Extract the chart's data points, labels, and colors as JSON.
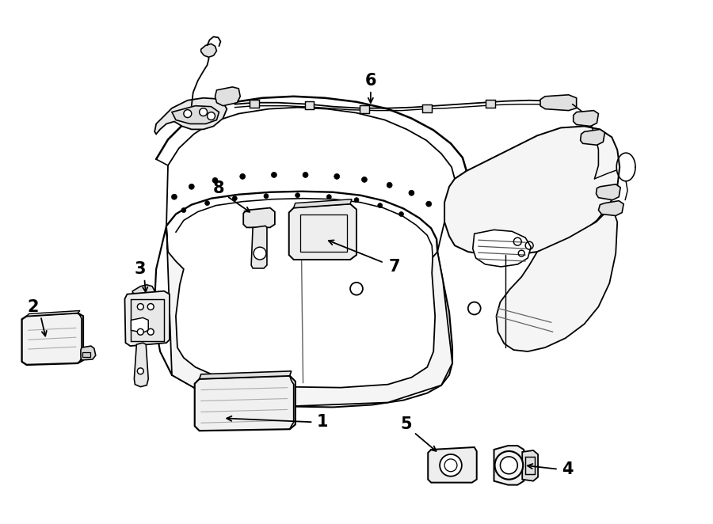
{
  "bg": "#ffffff",
  "lc": "#000000",
  "lw": 1.3,
  "fw": 9.0,
  "fh": 6.62,
  "dpi": 100
}
